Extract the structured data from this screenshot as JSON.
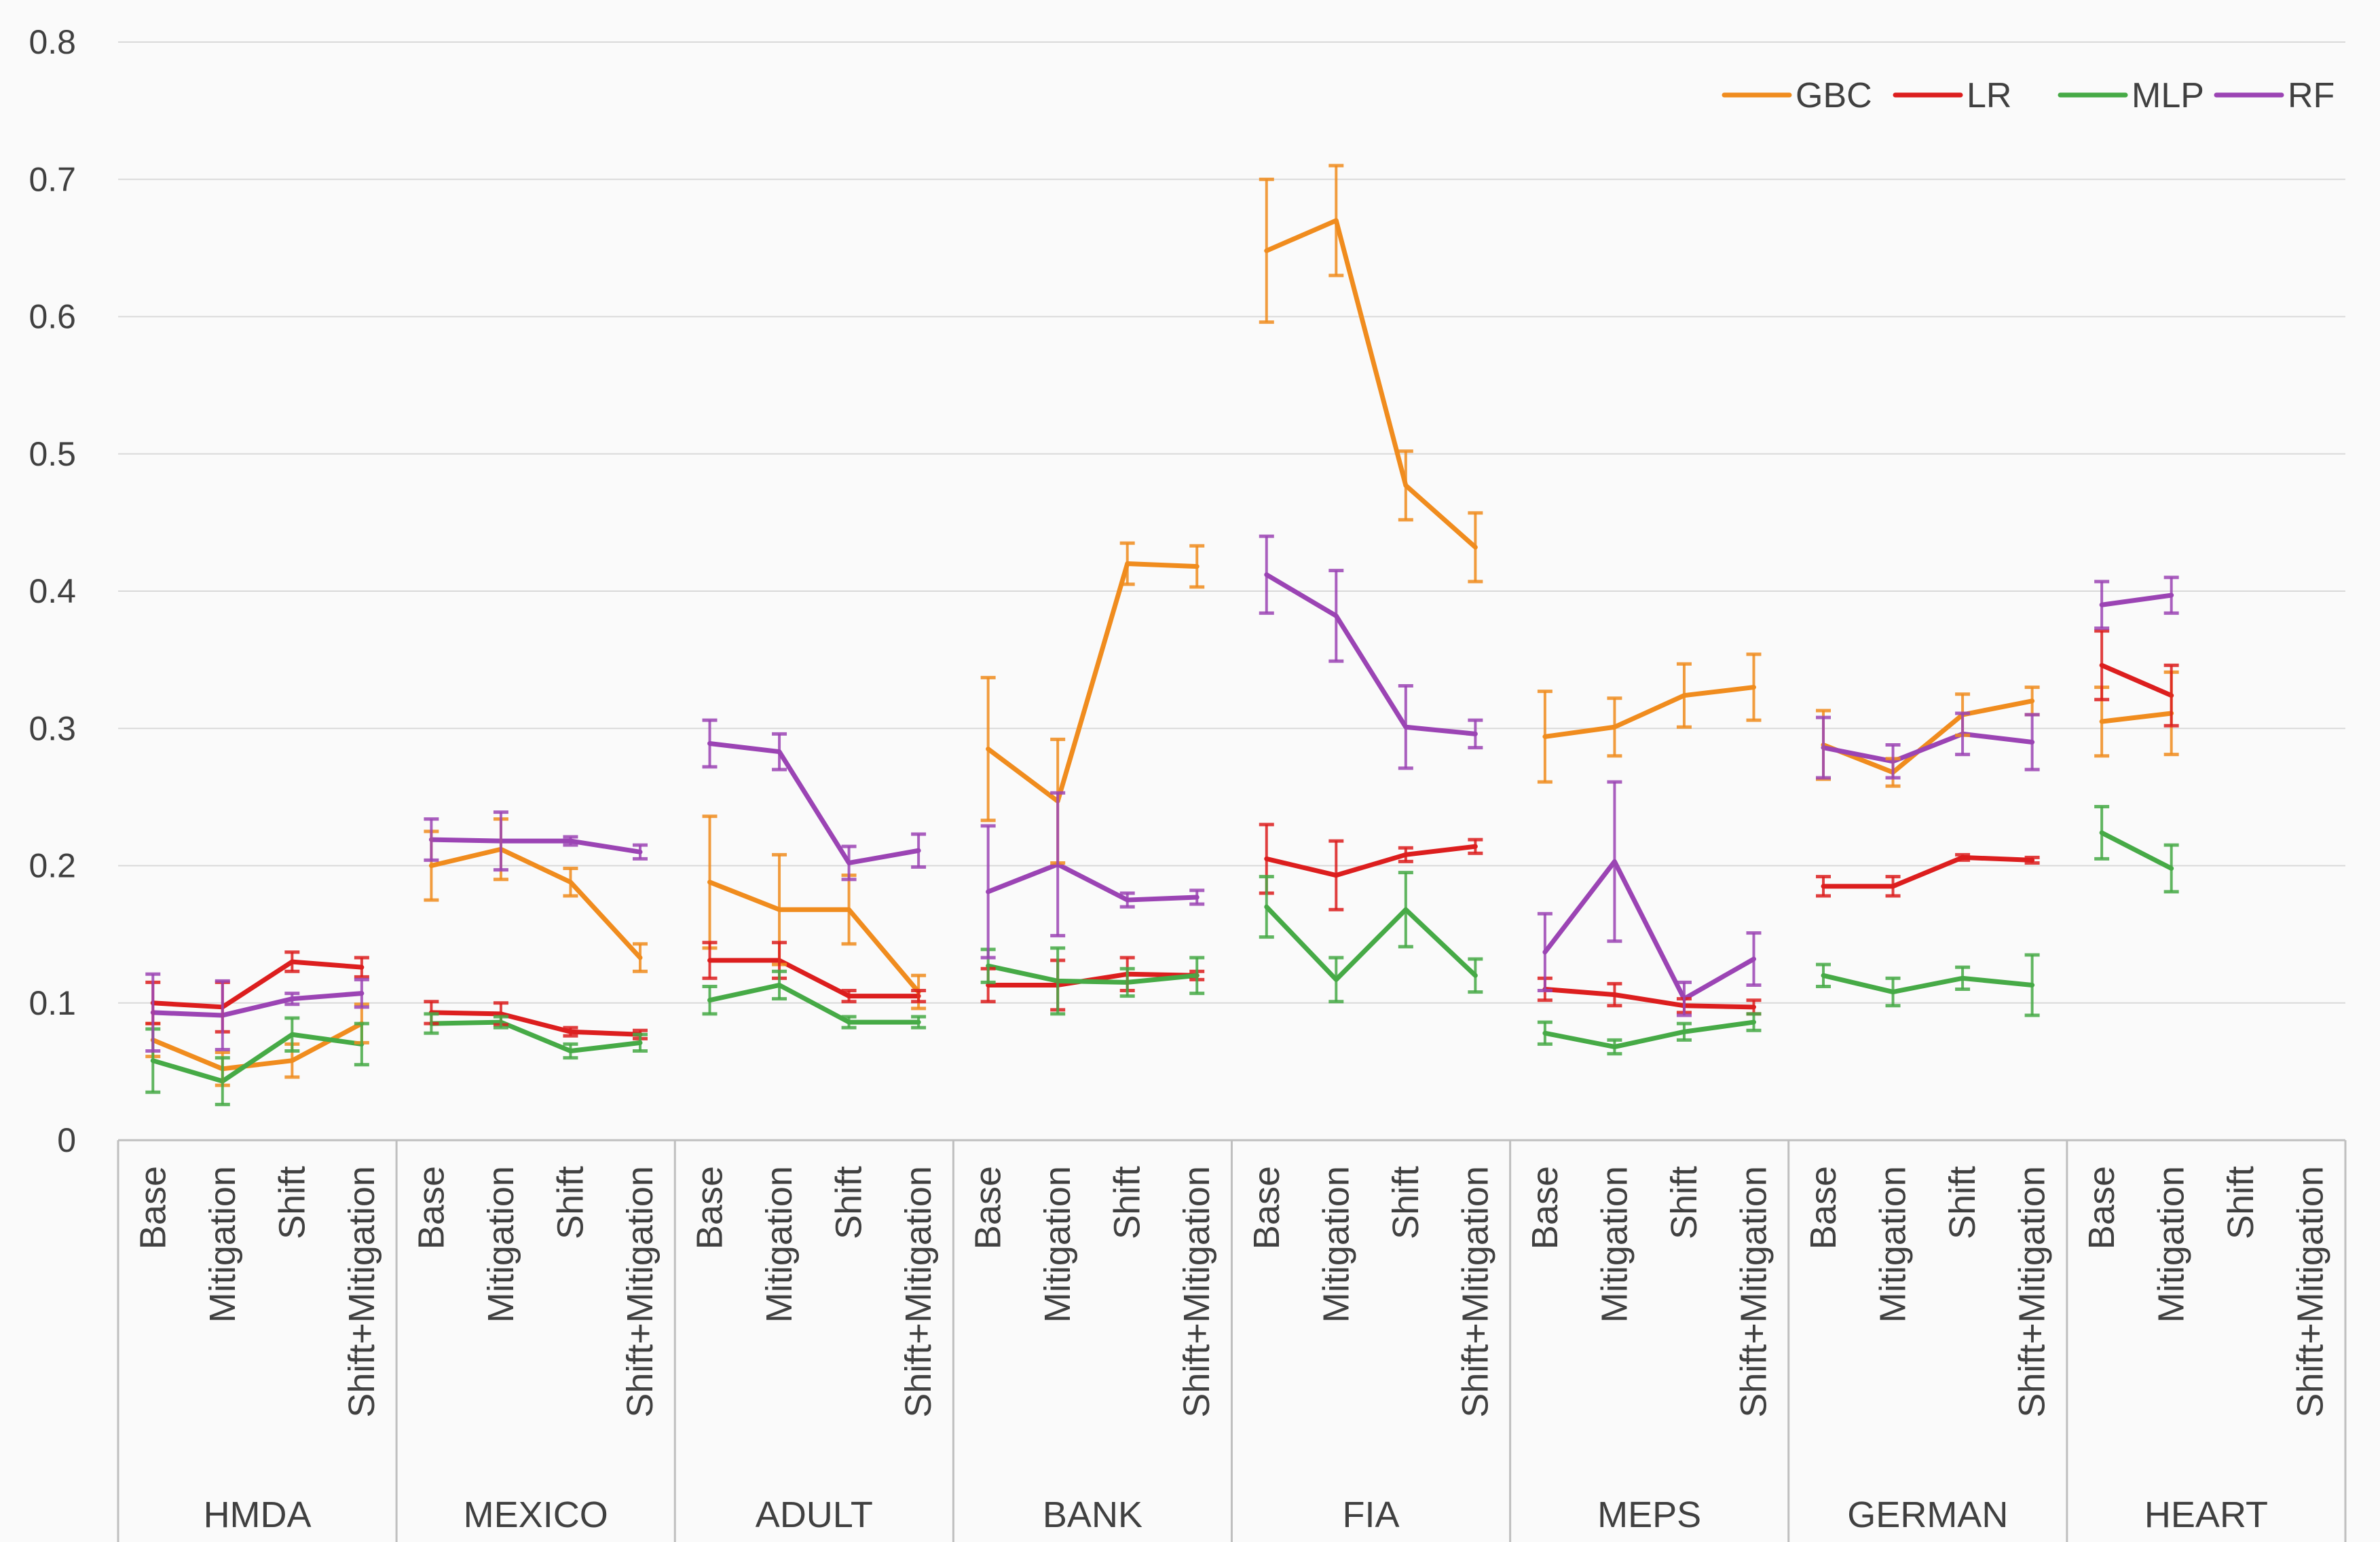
{
  "chart_data": {
    "type": "line",
    "title": "",
    "xlabel": "",
    "ylabel": "",
    "ylim": [
      0,
      0.8
    ],
    "yticks": [
      "0",
      "0.1",
      "0.2",
      "0.3",
      "0.4",
      "0.5",
      "0.6",
      "0.7",
      "0.8"
    ],
    "grid": "horizontal",
    "legend_position": "top-right",
    "conditions": [
      "Base",
      "Mitigation",
      "Shift",
      "Shift+Mitigation"
    ],
    "groups": [
      "HMDA",
      "MEXICO",
      "ADULT",
      "BANK",
      "FIA",
      "MEPS",
      "GERMAN",
      "HEART"
    ],
    "series": [
      {
        "name": "GBC",
        "color": "#f08c1e",
        "values": [
          [
            0.073,
            0.052,
            0.058,
            0.085
          ],
          [
            0.2,
            0.212,
            0.188,
            0.133
          ],
          [
            0.188,
            0.168,
            0.168,
            0.108
          ],
          [
            0.285,
            0.247,
            0.42,
            0.418
          ],
          [
            0.648,
            0.67,
            0.477,
            0.432
          ],
          [
            0.294,
            0.301,
            0.324,
            0.33
          ],
          [
            0.288,
            0.268,
            0.31,
            0.32
          ],
          [
            0.305,
            0.311,
            null,
            null
          ]
        ],
        "errors": [
          [
            0.012,
            0.012,
            0.012,
            0.014
          ],
          [
            0.025,
            0.022,
            0.01,
            0.01
          ],
          [
            0.048,
            0.04,
            0.025,
            0.012
          ],
          [
            0.052,
            0.045,
            0.015,
            0.015
          ],
          [
            0.052,
            0.04,
            0.025,
            0.025
          ],
          [
            0.033,
            0.021,
            0.023,
            0.024
          ],
          [
            0.025,
            0.01,
            0.015,
            0.01
          ],
          [
            0.025,
            0.03,
            null,
            null
          ]
        ]
      },
      {
        "name": "LR",
        "color": "#dc1e1e",
        "values": [
          [
            0.1,
            0.097,
            0.13,
            0.126
          ],
          [
            0.093,
            0.092,
            0.079,
            0.077
          ],
          [
            0.131,
            0.131,
            0.105,
            0.105
          ],
          [
            0.113,
            0.113,
            0.121,
            0.12
          ],
          [
            0.205,
            0.193,
            0.208,
            0.214
          ],
          [
            0.11,
            0.106,
            0.098,
            0.097
          ],
          [
            0.185,
            0.185,
            0.206,
            0.204
          ],
          [
            0.346,
            0.324,
            null,
            null
          ]
        ],
        "errors": [
          [
            0.015,
            0.018,
            0.007,
            0.007
          ],
          [
            0.008,
            0.008,
            0.003,
            0.003
          ],
          [
            0.013,
            0.013,
            0.004,
            0.004
          ],
          [
            0.012,
            0.018,
            0.012,
            0.003
          ],
          [
            0.025,
            0.025,
            0.005,
            0.005
          ],
          [
            0.008,
            0.008,
            0.005,
            0.005
          ],
          [
            0.007,
            0.007,
            0.002,
            0.002
          ],
          [
            0.025,
            0.022,
            null,
            null
          ]
        ]
      },
      {
        "name": "MLP",
        "color": "#46aa46",
        "values": [
          [
            0.058,
            0.043,
            0.077,
            0.07
          ],
          [
            0.085,
            0.086,
            0.065,
            0.071
          ],
          [
            0.102,
            0.113,
            0.086,
            0.086
          ],
          [
            0.127,
            0.116,
            0.115,
            0.12
          ],
          [
            0.17,
            0.117,
            0.168,
            0.12
          ],
          [
            0.078,
            0.068,
            0.079,
            0.086
          ],
          [
            0.12,
            0.108,
            0.118,
            0.113
          ],
          [
            0.224,
            0.198,
            null,
            null
          ]
        ],
        "errors": [
          [
            0.023,
            0.017,
            0.012,
            0.015
          ],
          [
            0.007,
            0.004,
            0.005,
            0.006
          ],
          [
            0.01,
            0.01,
            0.004,
            0.004
          ],
          [
            0.012,
            0.024,
            0.01,
            0.013
          ],
          [
            0.022,
            0.016,
            0.027,
            0.012
          ],
          [
            0.008,
            0.005,
            0.006,
            0.006
          ],
          [
            0.008,
            0.01,
            0.008,
            0.022
          ],
          [
            0.019,
            0.017,
            null,
            null
          ]
        ]
      },
      {
        "name": "RF",
        "color": "#9b44b4",
        "values": [
          [
            0.093,
            0.091,
            0.103,
            0.107
          ],
          [
            0.219,
            0.218,
            0.218,
            0.21
          ],
          [
            0.289,
            0.283,
            0.202,
            0.211
          ],
          [
            0.181,
            0.201,
            0.175,
            0.177
          ],
          [
            0.412,
            0.382,
            0.301,
            0.296
          ],
          [
            0.137,
            0.203,
            0.103,
            0.132
          ],
          [
            0.286,
            0.276,
            0.296,
            0.29
          ],
          [
            0.39,
            0.397,
            null,
            null
          ]
        ],
        "errors": [
          [
            0.028,
            0.025,
            0.004,
            0.01
          ],
          [
            0.015,
            0.021,
            0.003,
            0.005
          ],
          [
            0.017,
            0.013,
            0.012,
            0.012
          ],
          [
            0.048,
            0.052,
            0.005,
            0.005
          ],
          [
            0.028,
            0.033,
            0.03,
            0.01
          ],
          [
            0.028,
            0.058,
            0.012,
            0.019
          ],
          [
            0.022,
            0.012,
            0.015,
            0.02
          ],
          [
            0.017,
            0.013,
            null,
            null
          ]
        ]
      }
    ]
  }
}
